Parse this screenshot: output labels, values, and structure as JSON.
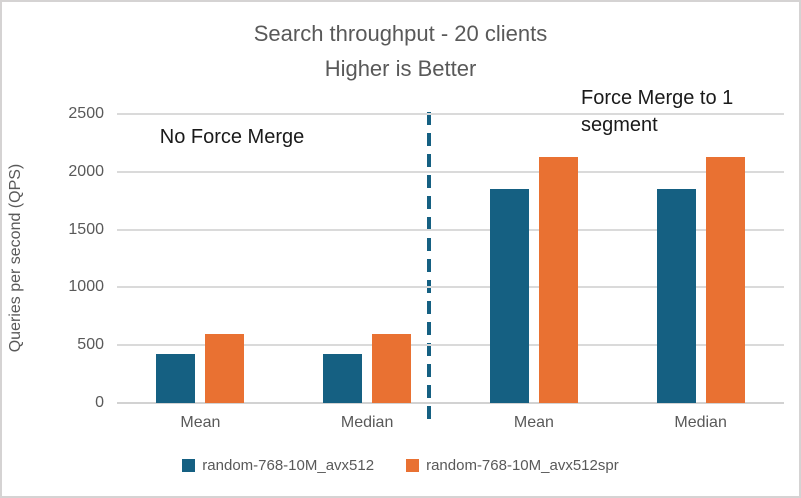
{
  "title": {
    "line1": "Search throughput - 20 clients",
    "line2": "Higher is Better"
  },
  "chart_data": {
    "type": "bar",
    "categories": [
      "Mean",
      "Median",
      "Mean",
      "Median"
    ],
    "series": [
      {
        "name": "random-768-10M_avx512",
        "color": "#156082",
        "values": [
          425,
          425,
          1850,
          1850
        ]
      },
      {
        "name": "random-768-10M_avx512spr",
        "color": "#E97132",
        "values": [
          595,
          595,
          2125,
          2125
        ]
      }
    ],
    "title": "Search throughput - 20 clients  Higher is Better",
    "xlabel": "",
    "ylabel": "Queries per second (QPS)",
    "ylim": [
      0,
      2500
    ],
    "yticks": [
      {
        "label": "0",
        "value": 0
      },
      {
        "label": "500",
        "value": 500
      },
      {
        "label": "1000",
        "value": 1000
      },
      {
        "label": "1500",
        "value": 1500
      },
      {
        "label": "2000",
        "value": 2000
      },
      {
        "label": "2500",
        "value": 2500
      }
    ],
    "grid": true,
    "legend_position": "bottom",
    "annotations": [
      {
        "text": "No Force Merge"
      },
      {
        "text": "Force Merge to 1 segment"
      }
    ],
    "separator": {
      "style": "dashed",
      "color": "#156082"
    },
    "colors": {
      "gridline": "#dadada",
      "axis_text": "#595959",
      "title_text": "#595959",
      "annotation_text": "#1a1a1a"
    }
  }
}
